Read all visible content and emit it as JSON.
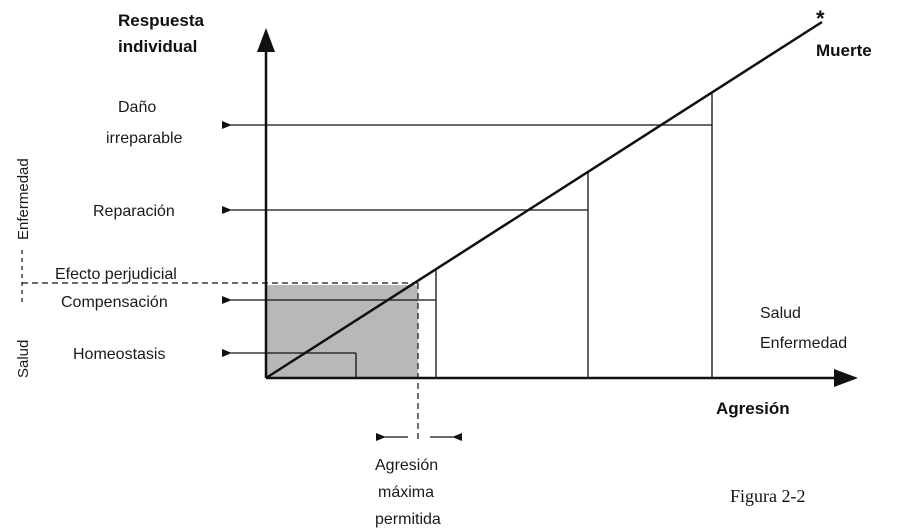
{
  "y_axis_title": [
    "Respuesta",
    "individual"
  ],
  "x_axis_title": "Agresión",
  "death_label": "Muerte",
  "death_marker": "*",
  "levels": {
    "dano_irreparable": [
      "Daño",
      "irreparable"
    ],
    "reparacion": "Reparación",
    "efecto_perjudicial": "Efecto perjudicial",
    "compensacion": "Compensación",
    "homeostasis": "Homeostasis"
  },
  "side_labels": {
    "enfermedad": "Enfermedad",
    "salud": "Salud"
  },
  "legend": [
    "Salud",
    "Enfermedad"
  ],
  "max_aggression": [
    "Agresión",
    "máxima",
    "permitida"
  ],
  "figure_caption": "Figura 2-2",
  "colors": {
    "ink": "#111111",
    "shaded_region": "#b8b8b8"
  }
}
